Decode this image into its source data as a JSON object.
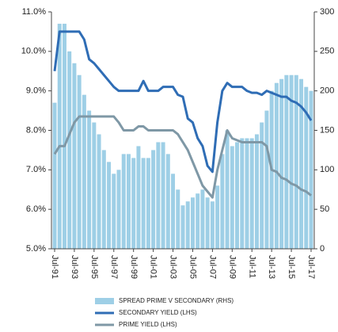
{
  "chart_data": {
    "type": "bar_line_dual_axis",
    "categories": [
      "Jul-91",
      null,
      null,
      null,
      "Jul-93",
      null,
      null,
      null,
      "Jul-95",
      null,
      null,
      null,
      "Jul-97",
      null,
      null,
      null,
      "Jul-99",
      null,
      null,
      null,
      "Jul-01",
      null,
      null,
      null,
      "Jul-03",
      null,
      null,
      null,
      "Jul-05",
      null,
      null,
      null,
      "Jul-07",
      null,
      null,
      null,
      "Jul-09",
      null,
      null,
      null,
      "Jul-11",
      null,
      null,
      null,
      "Jul-13",
      null,
      null,
      null,
      "Jul-15",
      null,
      null,
      null,
      "Jul-17"
    ],
    "series": [
      {
        "name": "SPREAD PRIME V SECONDARY (RHS)",
        "color": "#9ecfe6",
        "axis": "y2",
        "kind": "bar",
        "values": [
          185,
          285,
          285,
          250,
          235,
          220,
          195,
          175,
          160,
          145,
          125,
          110,
          95,
          100,
          120,
          120,
          115,
          130,
          115,
          115,
          125,
          135,
          135,
          120,
          95,
          75,
          55,
          60,
          65,
          70,
          75,
          65,
          60,
          80,
          120,
          150,
          130,
          135,
          140,
          140,
          140,
          145,
          160,
          175,
          200,
          210,
          215,
          220,
          220,
          220,
          215,
          205,
          200
        ]
      },
      {
        "name": "SECONDARY YIELD (LHS)",
        "color": "#2f6db5",
        "kind": "line",
        "values": [
          9.5,
          10.5,
          10.5,
          10.5,
          10.5,
          10.5,
          10.3,
          9.8,
          9.7,
          9.55,
          9.4,
          9.25,
          9.1,
          9.0,
          9.0,
          9.0,
          9.0,
          9.0,
          9.25,
          9.0,
          9.0,
          9.0,
          9.1,
          9.1,
          9.1,
          8.9,
          8.85,
          8.3,
          8.2,
          7.8,
          7.6,
          7.1,
          6.95,
          8.2,
          9.0,
          9.2,
          9.1,
          9.1,
          9.1,
          9.0,
          8.95,
          8.95,
          8.9,
          9.0,
          8.95,
          8.9,
          8.85,
          8.85,
          8.75,
          8.7,
          8.6,
          8.45,
          8.25
        ]
      },
      {
        "name": "PRIME YIELD (LHS)",
        "color": "#7f98a6",
        "kind": "line",
        "values": [
          7.4,
          7.6,
          7.6,
          7.9,
          8.2,
          8.35,
          8.35,
          8.35,
          8.35,
          8.35,
          8.35,
          8.35,
          8.35,
          8.2,
          8.0,
          8.0,
          8.0,
          8.1,
          8.1,
          8.0,
          8.0,
          8.0,
          8.0,
          8.0,
          8.0,
          7.9,
          7.7,
          7.5,
          7.2,
          6.9,
          6.6,
          6.45,
          6.3,
          7.0,
          7.5,
          8.0,
          7.8,
          7.75,
          7.7,
          7.7,
          7.7,
          7.7,
          7.7,
          7.6,
          7.0,
          6.95,
          6.8,
          6.75,
          6.65,
          6.6,
          6.5,
          6.45,
          6.35
        ]
      }
    ],
    "ylim": [
      5,
      11
    ],
    "yticks": [
      {
        "value": 5,
        "label": "5.0%"
      },
      {
        "value": 6,
        "label": "6.0%"
      },
      {
        "value": 7,
        "label": "7.0%"
      },
      {
        "value": 8,
        "label": "8.0%"
      },
      {
        "value": 9,
        "label": "9.0%"
      },
      {
        "value": 10,
        "label": "10.0%"
      },
      {
        "value": 11,
        "label": "11.0%"
      }
    ],
    "y2lim": [
      0,
      300
    ],
    "y2ticks": [
      0,
      50,
      100,
      150,
      200,
      250,
      300
    ]
  }
}
